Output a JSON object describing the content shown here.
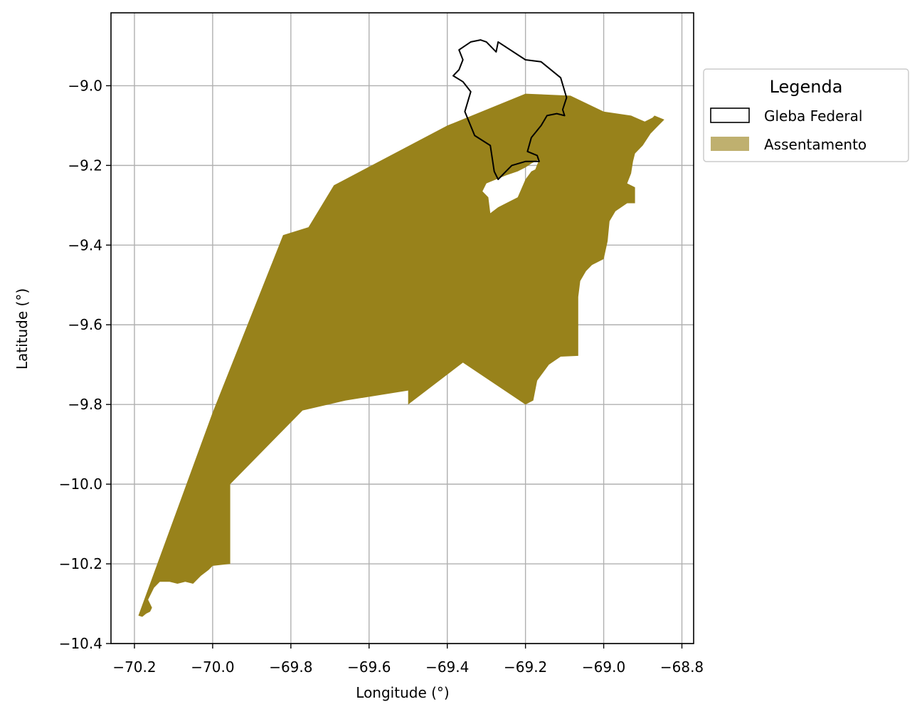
{
  "chart_data": {
    "type": "map",
    "xlabel": "Longitude (°)",
    "ylabel": "Latitude (°)",
    "xlim": [
      -70.26,
      -68.77
    ],
    "ylim": [
      -10.4,
      -8.817
    ],
    "grid": true,
    "x_ticks": [
      -70.2,
      -70.0,
      -69.8,
      -69.6,
      -69.4,
      -69.2,
      -69.0,
      -68.8
    ],
    "y_ticks": [
      -9.0,
      -9.2,
      -9.4,
      -9.6,
      -9.8,
      -10.0,
      -10.2,
      -10.4
    ],
    "x_tick_labels": [
      "−70.2",
      "−70.0",
      "−69.8",
      "−69.6",
      "−69.4",
      "−69.2",
      "−69.0",
      "−68.8"
    ],
    "y_tick_labels": [
      "−9.0",
      "−9.2",
      "−9.4",
      "−9.6",
      "−9.8",
      "−10.0",
      "−10.2",
      "−10.4"
    ],
    "legend": {
      "title": "Legenda",
      "placement": "outside upper right",
      "items": [
        {
          "label": "Gleba Federal",
          "style": "outline",
          "color": "#000000"
        },
        {
          "label": "Assentamento",
          "style": "fill",
          "color": "#bfb06f"
        }
      ]
    },
    "layers": [
      {
        "name": "Assentamento",
        "color": "#98821b",
        "polygon": [
          [
            -70.19,
            -10.33
          ],
          [
            -70.18,
            -10.333
          ],
          [
            -70.17,
            -10.325
          ],
          [
            -70.16,
            -10.32
          ],
          [
            -70.155,
            -10.31
          ],
          [
            -70.165,
            -10.29
          ],
          [
            -70.15,
            -10.26
          ],
          [
            -70.135,
            -10.245
          ],
          [
            -70.11,
            -10.245
          ],
          [
            -70.09,
            -10.25
          ],
          [
            -70.07,
            -10.245
          ],
          [
            -70.05,
            -10.25
          ],
          [
            -70.03,
            -10.23
          ],
          [
            -70.01,
            -10.215
          ],
          [
            -70.0,
            -10.205
          ],
          [
            -69.955,
            -10.2
          ],
          [
            -69.955,
            -10.0
          ],
          [
            -69.77,
            -9.815
          ],
          [
            -69.66,
            -9.79
          ],
          [
            -69.5,
            -9.765
          ],
          [
            -69.5,
            -9.8
          ],
          [
            -69.36,
            -9.695
          ],
          [
            -69.2,
            -9.8
          ],
          [
            -69.18,
            -9.79
          ],
          [
            -69.17,
            -9.74
          ],
          [
            -69.14,
            -9.7
          ],
          [
            -69.11,
            -9.68
          ],
          [
            -69.065,
            -9.678
          ],
          [
            -69.065,
            -9.53
          ],
          [
            -69.06,
            -9.49
          ],
          [
            -69.045,
            -9.465
          ],
          [
            -69.03,
            -9.45
          ],
          [
            -69.0,
            -9.435
          ],
          [
            -68.99,
            -9.39
          ],
          [
            -68.985,
            -9.34
          ],
          [
            -68.97,
            -9.315
          ],
          [
            -68.94,
            -9.295
          ],
          [
            -68.92,
            -9.295
          ],
          [
            -68.92,
            -9.255
          ],
          [
            -68.94,
            -9.245
          ],
          [
            -68.93,
            -9.22
          ],
          [
            -68.925,
            -9.19
          ],
          [
            -68.92,
            -9.17
          ],
          [
            -68.9,
            -9.15
          ],
          [
            -68.88,
            -9.12
          ],
          [
            -68.86,
            -9.1
          ],
          [
            -68.845,
            -9.085
          ],
          [
            -68.87,
            -9.075
          ],
          [
            -68.875,
            -9.08
          ],
          [
            -68.895,
            -9.09
          ],
          [
            -68.93,
            -9.075
          ],
          [
            -69.0,
            -9.065
          ],
          [
            -69.085,
            -9.025
          ],
          [
            -69.2,
            -9.02
          ],
          [
            -69.4,
            -9.1
          ],
          [
            -69.69,
            -9.25
          ],
          [
            -69.755,
            -9.355
          ],
          [
            -69.82,
            -9.375
          ],
          [
            -70.0,
            -9.82
          ]
        ],
        "holes": [
          [
            [
              -69.29,
              -9.32
            ],
            [
              -69.295,
              -9.28
            ],
            [
              -69.31,
              -9.265
            ],
            [
              -69.3,
              -9.245
            ],
            [
              -69.25,
              -9.225
            ],
            [
              -69.22,
              -9.215
            ],
            [
              -69.2,
              -9.205
            ],
            [
              -69.185,
              -9.195
            ],
            [
              -69.165,
              -9.185
            ],
            [
              -69.175,
              -9.21
            ],
            [
              -69.185,
              -9.215
            ],
            [
              -69.2,
              -9.235
            ],
            [
              -69.22,
              -9.28
            ],
            [
              -69.25,
              -9.295
            ],
            [
              -69.27,
              -9.305
            ]
          ]
        ]
      },
      {
        "name": "Gleba Federal",
        "color": "#000000",
        "polygon": [
          [
            -69.27,
            -9.235
          ],
          [
            -69.28,
            -9.215
          ],
          [
            -69.29,
            -9.15
          ],
          [
            -69.33,
            -9.125
          ],
          [
            -69.355,
            -9.065
          ],
          [
            -69.34,
            -9.015
          ],
          [
            -69.36,
            -8.99
          ],
          [
            -69.385,
            -8.975
          ],
          [
            -69.37,
            -8.96
          ],
          [
            -69.36,
            -8.935
          ],
          [
            -69.37,
            -8.91
          ],
          [
            -69.34,
            -8.89
          ],
          [
            -69.315,
            -8.885
          ],
          [
            -69.3,
            -8.89
          ],
          [
            -69.285,
            -8.905
          ],
          [
            -69.275,
            -8.915
          ],
          [
            -69.27,
            -8.89
          ],
          [
            -69.2,
            -8.935
          ],
          [
            -69.16,
            -8.94
          ],
          [
            -69.11,
            -8.98
          ],
          [
            -69.095,
            -9.03
          ],
          [
            -69.105,
            -9.06
          ],
          [
            -69.1,
            -9.075
          ],
          [
            -69.12,
            -9.07
          ],
          [
            -69.145,
            -9.075
          ],
          [
            -69.16,
            -9.1
          ],
          [
            -69.185,
            -9.13
          ],
          [
            -69.195,
            -9.165
          ],
          [
            -69.17,
            -9.175
          ],
          [
            -69.165,
            -9.19
          ],
          [
            -69.2,
            -9.19
          ],
          [
            -69.235,
            -9.2
          ],
          [
            -69.255,
            -9.22
          ]
        ]
      }
    ]
  }
}
